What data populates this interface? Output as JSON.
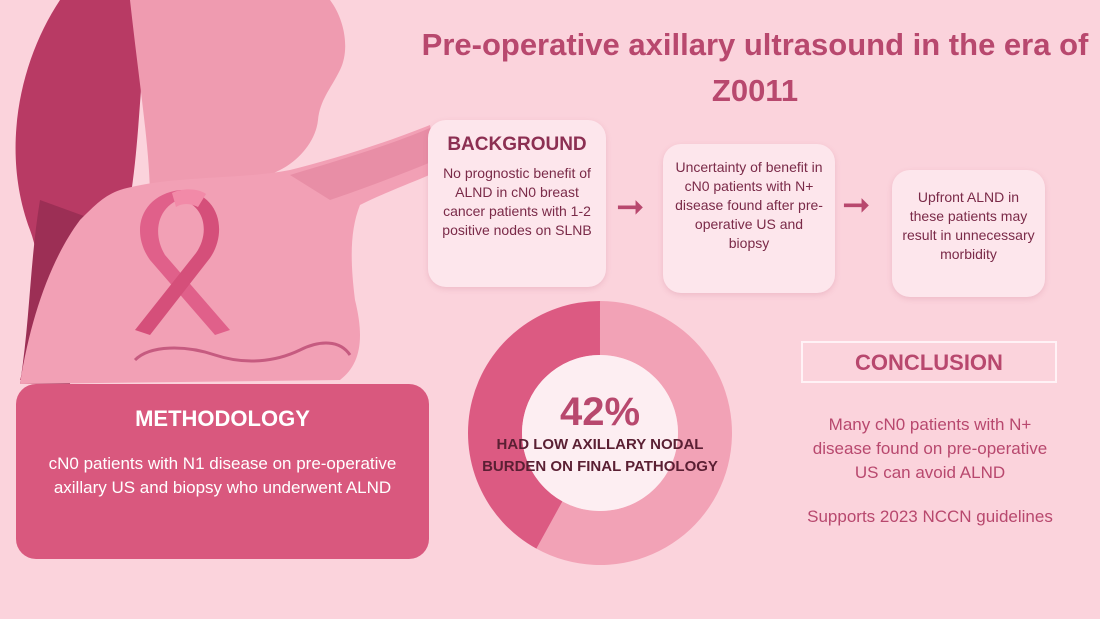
{
  "title": "Pre-operative axillary ultrasound in the era of Z0011",
  "background": {
    "heading": "BACKGROUND",
    "text": "No prognostic benefit of ALND in cN0 breast cancer patients with 1-2 positive nodes on SLNB"
  },
  "flow": {
    "step2": "Uncertainty of benefit in cN0 patients with N+ disease found after pre-operative US and biopsy",
    "step3": "Upfront ALND in these patients may result in unnecessary morbidity"
  },
  "methodology": {
    "heading": "METHODOLOGY",
    "text": "cN0 patients with N1 disease on pre-operative axillary US and biopsy who underwent ALND"
  },
  "result": {
    "percent_label": "42%",
    "percent_value": 42,
    "description": "HAD LOW AXILLARY NODAL BURDEN ON FINAL PATHOLOGY",
    "color_highlight": "#dc5a82",
    "color_rest": "#f2a2b6"
  },
  "conclusion": {
    "heading": "CONCLUSION",
    "text1": "Many cN0 patients with N+ disease found on pre-operative US can avoid ALND",
    "text2": "Supports 2023 NCCN guidelines"
  },
  "colors": {
    "background": "#fbd3dc",
    "accent": "#b8486e",
    "hair": "#b83a64",
    "skin": "#f4a6b8",
    "ribbon": "#e0608a"
  },
  "icons": [
    "woman-illustration",
    "pink-ribbon-icon",
    "arrow-right-icon"
  ]
}
